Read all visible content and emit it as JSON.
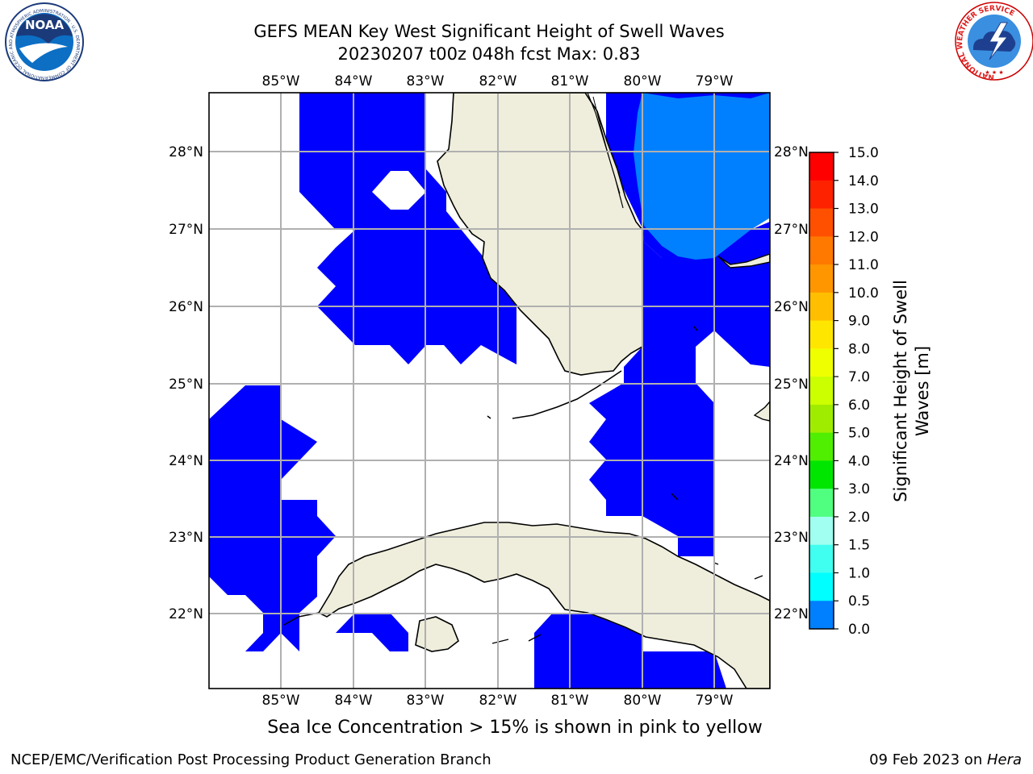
{
  "title": {
    "line1": "GEFS MEAN Key West Significant Height of Swell Waves",
    "line2": "20230207 t00z 048h fcst   Max: 0.83"
  },
  "map": {
    "lon_labels": [
      "85°W",
      "84°W",
      "83°W",
      "82°W",
      "81°W",
      "80°W",
      "79°W"
    ],
    "lat_labels": [
      "28°N",
      "27°N",
      "26°N",
      "25°N",
      "24°N",
      "23°N",
      "22°N"
    ],
    "lon_range": [
      -86.0,
      -78.3
    ],
    "lat_range": [
      21.0,
      28.8
    ],
    "land_color": "#efeedc",
    "band_colors": {
      "0.0-0.5": "#0000ff",
      "0.5-1.0": "#0080ff"
    }
  },
  "colorbar": {
    "title_line1": "Significant Height of Swell",
    "title_line2": "Waves [m]",
    "ticks": [
      "15.0",
      "14.0",
      "13.0",
      "12.0",
      "11.0",
      "10.0",
      "9.0",
      "8.0",
      "7.0",
      "6.0",
      "5.0",
      "4.0",
      "3.0",
      "2.0",
      "1.5",
      "1.0",
      "0.5",
      "0.0"
    ],
    "colors": [
      "#ff0000",
      "#ff2200",
      "#ff5000",
      "#ff7800",
      "#ff9600",
      "#ffbe00",
      "#ffe600",
      "#f0ff00",
      "#ccff00",
      "#a0ec00",
      "#50ee00",
      "#00e600",
      "#50ff80",
      "#a0fff0",
      "#40fff0",
      "#00ffff",
      "#0080ff",
      "#0000ff"
    ]
  },
  "logos": {
    "noaa_text": "NOAA",
    "noaa_ring": "NATIONAL OCEANIC AND ATMOSPHERIC ADMINISTRATION · U.S. DEPARTMENT OF COMMERCE",
    "nws_ring": "NATIONAL WEATHER SERVICE"
  },
  "note": "Sea Ice Concentration > 15% is shown in pink to yellow",
  "footer": {
    "left": "NCEP/EMC/Verification Post Processing Product Generation Branch",
    "right_prefix": "09 Feb 2023 on ",
    "right_machine": "Hera"
  }
}
